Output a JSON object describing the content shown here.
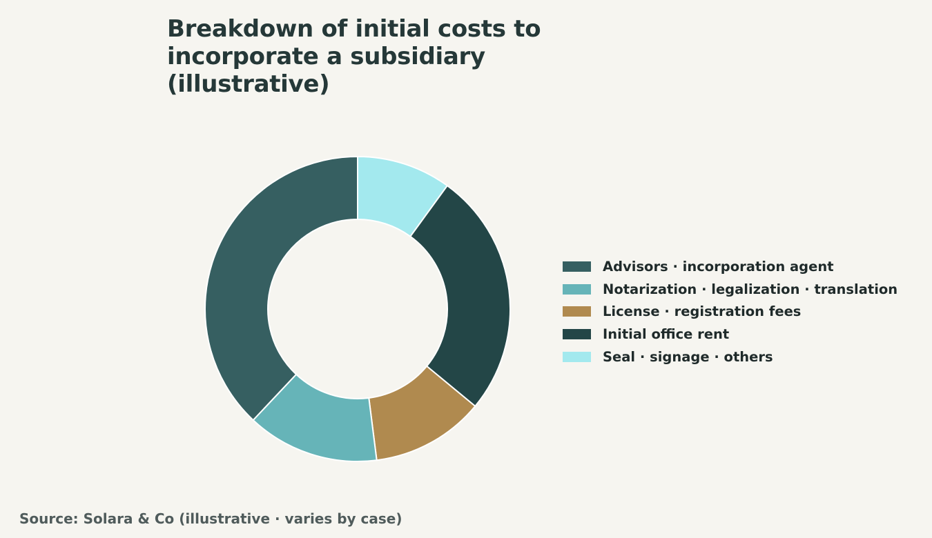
{
  "chart_data": {
    "type": "pie",
    "variant": "donut",
    "title": "Breakdown of initial costs to incorporate a subsidiary (illustrative)",
    "categories": [
      "Seal · signage · others",
      "Initial office rent",
      "License · registration fees",
      "Notarization · legalization · translation",
      "Advisors · incorporation agent"
    ],
    "values": [
      10,
      26,
      12,
      14,
      38
    ],
    "colors": [
      "#a3e9ee",
      "#234647",
      "#b08a4f",
      "#66b4b8",
      "#365f61"
    ],
    "legend_order": [
      4,
      3,
      2,
      1,
      0
    ],
    "legend_position": "right",
    "grid": false
  },
  "source": "Source: Solara & Co (illustrative · varies by case)"
}
